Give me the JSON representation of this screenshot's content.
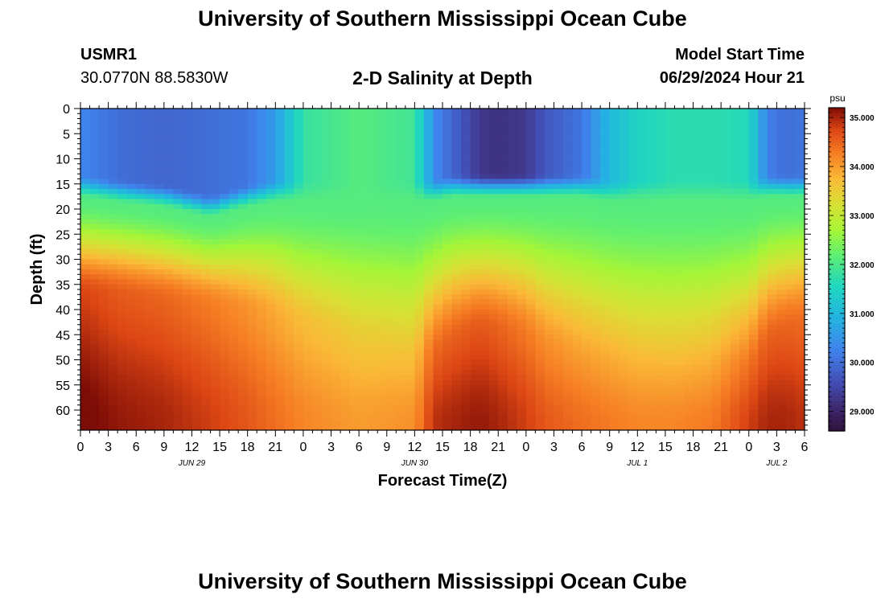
{
  "header": {
    "title": "University of Southern Mississippi Ocean Cube",
    "station": "USMR1",
    "coords": "30.0770N  88.5830W",
    "subtitle": "2-D Salinity at Depth",
    "start_label": "Model Start Time",
    "start_value": "06/29/2024 Hour 21"
  },
  "footer": {
    "title": "University of Southern Mississippi Ocean Cube"
  },
  "chart_data": {
    "type": "heatmap",
    "title": "2-D Salinity at Depth",
    "xlabel": "Forecast Time(Z)",
    "ylabel": "Depth (ft)",
    "x_tick_labels": [
      "0",
      "3",
      "6",
      "9",
      "12",
      "15",
      "18",
      "21",
      "0",
      "3",
      "6",
      "9",
      "12",
      "15",
      "18",
      "21",
      "0",
      "3",
      "6",
      "9",
      "12",
      "15",
      "18",
      "21",
      "0",
      "3",
      "6"
    ],
    "x_range_hours": [
      0,
      78
    ],
    "date_labels": [
      {
        "label": "JUN 29",
        "hour": 12
      },
      {
        "label": "JUN 30",
        "hour": 36
      },
      {
        "label": "JUL 1",
        "hour": 60
      },
      {
        "label": "JUL 2",
        "hour": 75
      }
    ],
    "y_ticks": [
      0,
      5,
      10,
      15,
      20,
      25,
      30,
      35,
      40,
      45,
      50,
      55,
      60
    ],
    "y_range": [
      0,
      64
    ],
    "y_inverted": true,
    "colorbar": {
      "unit": "psu",
      "min": 28.6,
      "max": 35.2,
      "ticks": [
        "35.000",
        "34.000",
        "33.000",
        "32.000",
        "31.000",
        "30.000",
        "29.000"
      ],
      "tick_values": [
        35,
        34,
        33,
        32,
        31,
        30,
        29
      ]
    },
    "profile_hours": [
      0,
      4,
      9,
      14,
      18,
      21,
      24,
      30,
      36,
      38,
      40,
      43,
      45,
      48,
      50,
      52,
      54,
      57,
      60,
      64,
      68,
      72,
      74,
      76,
      78
    ],
    "thermocline_top_ft": [
      16,
      17,
      18,
      20,
      18,
      17,
      17,
      17,
      17,
      17,
      16,
      16,
      16,
      16,
      16,
      16,
      16,
      17,
      17,
      17,
      17,
      17,
      16,
      16,
      16
    ],
    "surface_psu": [
      30.3,
      30.0,
      29.9,
      30.0,
      30.1,
      30.6,
      31.8,
      32.1,
      31.9,
      30.4,
      29.9,
      29.3,
      29.2,
      29.3,
      29.7,
      29.9,
      30.1,
      31.0,
      31.5,
      31.7,
      31.7,
      31.6,
      30.2,
      30.0,
      30.1
    ],
    "halocline_mid_ft": [
      29,
      29,
      30,
      31,
      32,
      33,
      35,
      38,
      42,
      41,
      38,
      36,
      36,
      37,
      39,
      40,
      41,
      42,
      43,
      44,
      44,
      44,
      38,
      36,
      34
    ],
    "deep_psu": [
      35.3,
      35.1,
      35.0,
      34.8,
      34.6,
      34.4,
      34.2,
      34.0,
      34.1,
      34.9,
      35.0,
      35.1,
      35.0,
      34.8,
      34.6,
      34.5,
      34.4,
      34.3,
      34.2,
      34.2,
      34.3,
      34.8,
      35.0,
      35.0,
      34.9
    ]
  }
}
